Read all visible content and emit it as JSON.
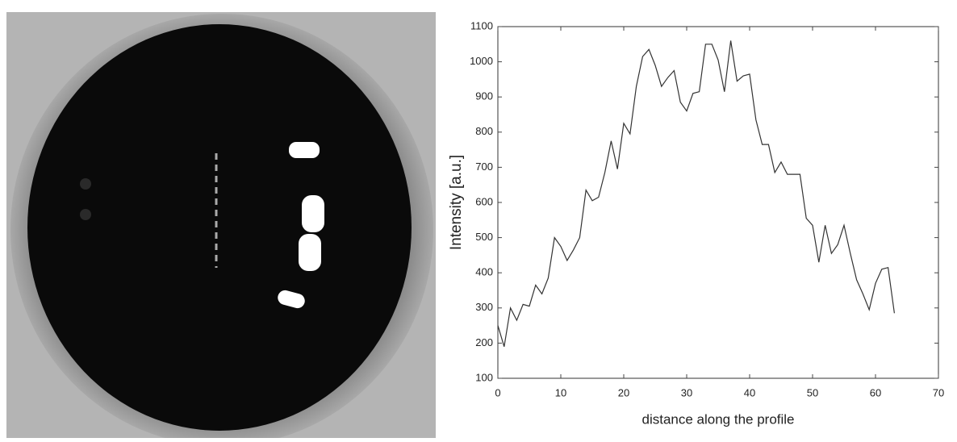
{
  "chart_data": {
    "type": "line",
    "xlabel": "distance along the profile",
    "ylabel": "Intensity [a.u.]",
    "x": [
      0,
      1,
      2,
      3,
      4,
      5,
      6,
      7,
      8,
      9,
      10,
      11,
      12,
      13,
      14,
      15,
      16,
      17,
      18,
      19,
      20,
      21,
      22,
      23,
      24,
      25,
      26,
      27,
      28,
      29,
      30,
      31,
      32,
      33,
      34,
      35,
      36,
      37,
      38,
      39,
      40,
      41,
      42,
      43,
      44,
      45,
      46,
      47,
      48,
      49,
      50,
      51,
      52,
      53,
      54,
      55,
      56,
      57,
      58,
      59,
      60,
      61,
      62,
      63
    ],
    "values": [
      250,
      190,
      300,
      265,
      310,
      305,
      365,
      340,
      385,
      500,
      475,
      435,
      465,
      500,
      635,
      605,
      615,
      685,
      775,
      695,
      825,
      795,
      930,
      1015,
      1035,
      990,
      930,
      955,
      975,
      885,
      860,
      910,
      915,
      1050,
      1050,
      1005,
      915,
      1060,
      945,
      960,
      965,
      835,
      765,
      765,
      685,
      715,
      680,
      680,
      680,
      555,
      535,
      430,
      535,
      455,
      480,
      535,
      455,
      380,
      340,
      295,
      370,
      410,
      415,
      285
    ],
    "color": "#333333",
    "xlim": [
      0,
      70
    ],
    "xticks": [
      0,
      10,
      20,
      30,
      40,
      50,
      60,
      70
    ],
    "ylim": [
      100,
      1100
    ],
    "yticks": [
      100,
      200,
      300,
      400,
      500,
      600,
      700,
      800,
      900,
      1000,
      1100
    ],
    "grid": false
  }
}
